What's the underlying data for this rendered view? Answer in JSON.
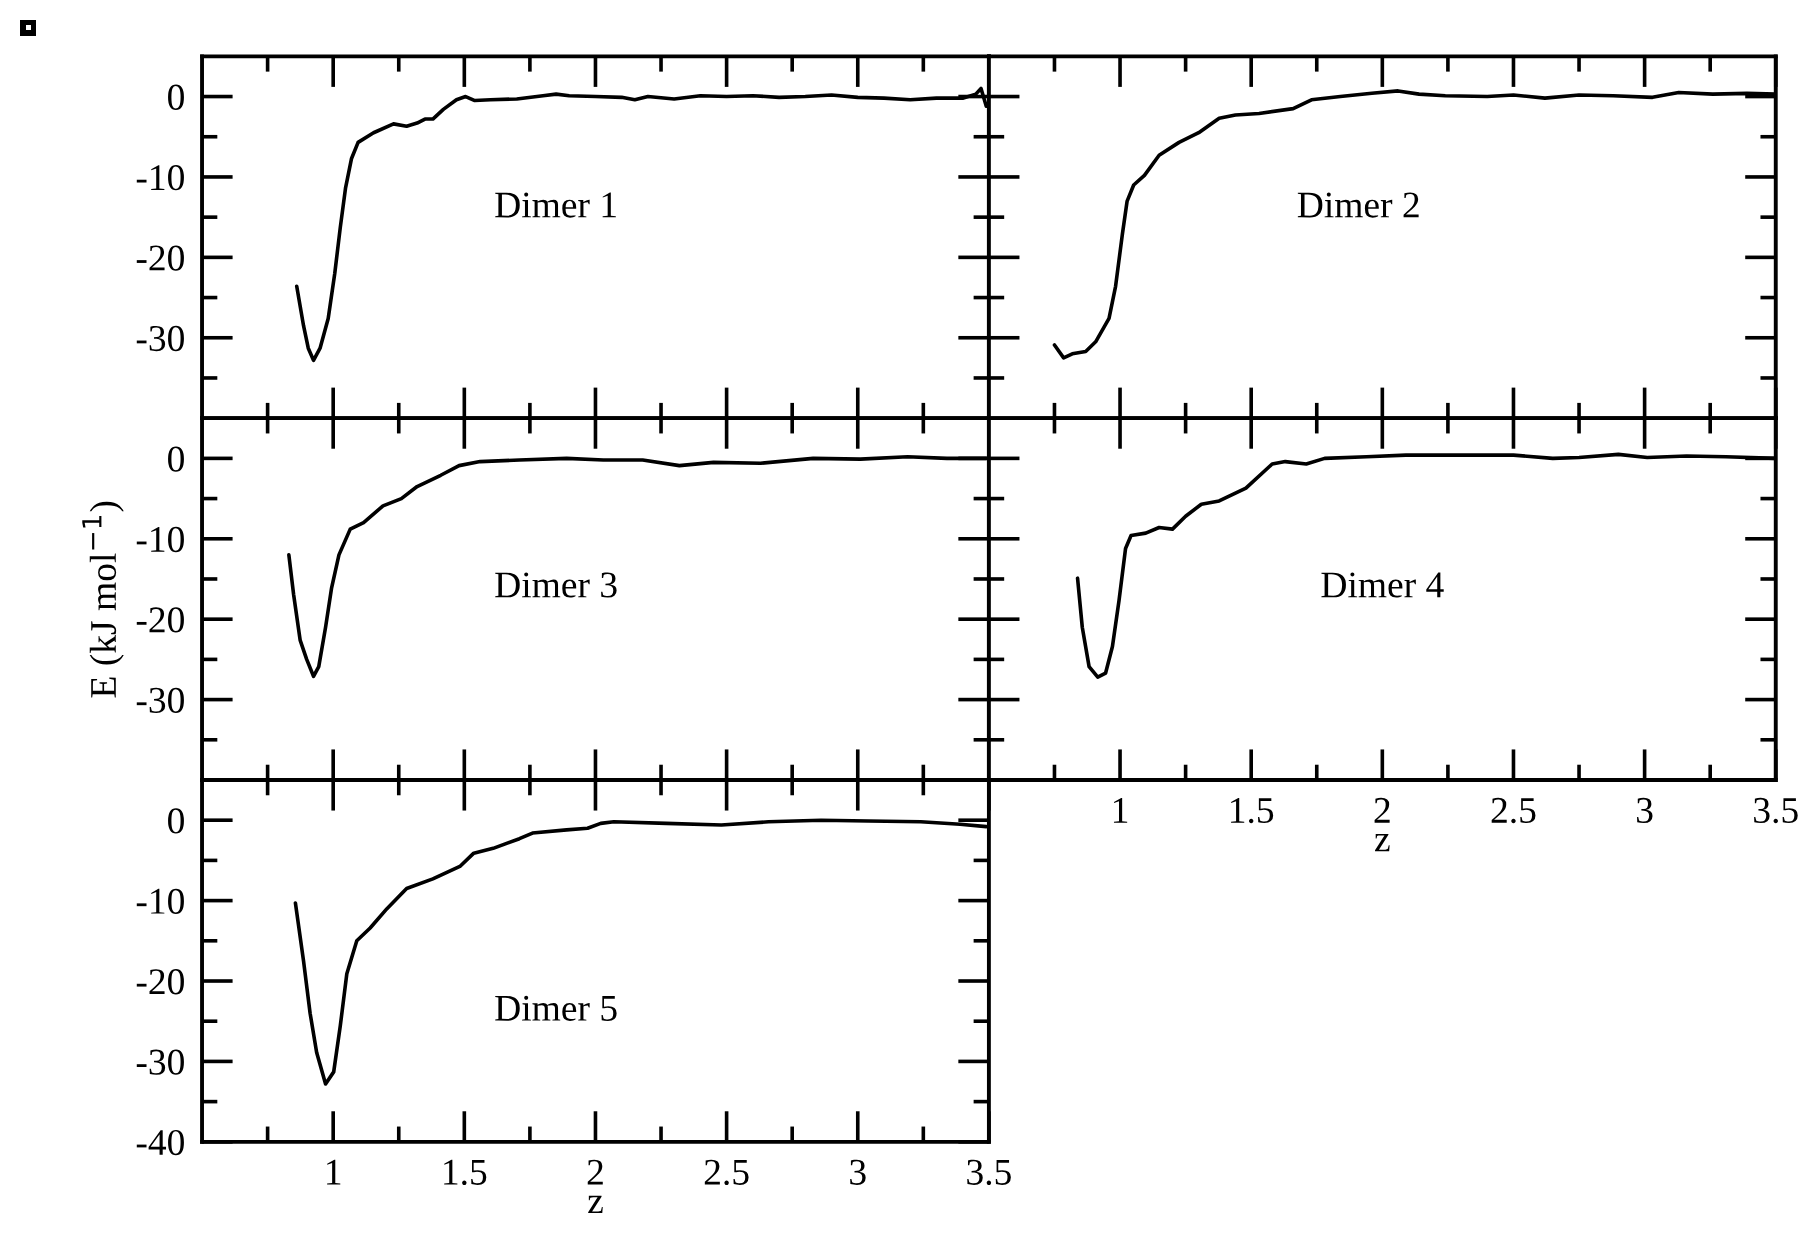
{
  "chart_data": [
    {
      "type": "line",
      "annotations": [
        "Dimer 1"
      ],
      "color": "#000000",
      "xlim": [
        0.5,
        3.5
      ],
      "ylim": [
        -40,
        5
      ],
      "xticks": [
        {
          "value": 0.75,
          "label": null
        },
        1,
        {
          "value": 1.25,
          "label": null
        },
        1.5,
        {
          "value": 1.75,
          "label": null
        },
        2,
        {
          "value": 2.25,
          "label": null
        },
        2.5,
        {
          "value": 2.75,
          "label": null
        },
        3,
        {
          "value": 3.25,
          "label": null
        },
        3.5
      ],
      "yticks": [
        {
          "value": -35,
          "label": null
        },
        -30,
        {
          "value": -25,
          "label": null
        },
        -20,
        {
          "value": -15,
          "label": null
        },
        -10,
        {
          "value": -5,
          "label": null
        },
        0
      ],
      "tick_labels": "y",
      "x": [
        0.861,
        0.887,
        0.905,
        0.925,
        0.95,
        0.981,
        1.006,
        1.027,
        1.047,
        1.07,
        1.095,
        1.154,
        1.23,
        1.28,
        1.32,
        1.35,
        1.38,
        1.42,
        1.47,
        1.505,
        1.54,
        1.6,
        1.7,
        1.8,
        1.85,
        1.9,
        2.0,
        2.1,
        2.15,
        2.2,
        2.3,
        2.4,
        2.5,
        2.6,
        2.7,
        2.8,
        2.9,
        3.0,
        3.1,
        3.2,
        3.3,
        3.4,
        3.45,
        3.47,
        3.49
      ],
      "values": [
        -23.6,
        -28.5,
        -31.3,
        -32.8,
        -31.3,
        -27.6,
        -22,
        -16.3,
        -11.4,
        -7.7,
        -5.7,
        -4.5,
        -3.4,
        -3.7,
        -3.3,
        -2.8,
        -2.8,
        -1.6,
        -0.4,
        0,
        -0.5,
        -0.4,
        -0.3,
        0.1,
        0.3,
        0.1,
        0,
        -0.1,
        -0.4,
        0,
        -0.3,
        0.1,
        0,
        0.1,
        -0.1,
        0,
        0.2,
        -0.1,
        -0.2,
        -0.4,
        -0.2,
        -0.2,
        0.3,
        1.0,
        -1.2
      ]
    },
    {
      "type": "line",
      "annotations": [
        "Dimer 2"
      ],
      "color": "#000000",
      "xlim": [
        0.5,
        3.5
      ],
      "ylim": [
        -40,
        5
      ],
      "xticks": [
        {
          "value": 0.75,
          "label": null
        },
        1,
        {
          "value": 1.25,
          "label": null
        },
        1.5,
        {
          "value": 1.75,
          "label": null
        },
        2,
        {
          "value": 2.25,
          "label": null
        },
        2.5,
        {
          "value": 2.75,
          "label": null
        },
        3,
        {
          "value": 3.25,
          "label": null
        },
        3.5
      ],
      "yticks": [
        {
          "value": -35,
          "label": null
        },
        -30,
        {
          "value": -25,
          "label": null
        },
        -20,
        {
          "value": -15,
          "label": null
        },
        -10,
        {
          "value": -5,
          "label": null
        },
        0
      ],
      "tick_labels": false,
      "x": [
        0.75,
        0.785,
        0.818,
        0.869,
        0.907,
        0.958,
        0.983,
        1.009,
        1.027,
        1.052,
        1.093,
        1.149,
        1.225,
        1.3,
        1.378,
        1.44,
        1.53,
        1.66,
        1.73,
        1.84,
        1.96,
        2.06,
        2.14,
        2.24,
        2.4,
        2.5,
        2.62,
        2.75,
        2.88,
        3.03,
        3.13,
        3.26,
        3.39,
        3.5
      ],
      "values": [
        -30.9,
        -32.5,
        -32.0,
        -31.7,
        -30.5,
        -27.6,
        -23.6,
        -17.1,
        -13.0,
        -11.0,
        -9.8,
        -7.3,
        -5.7,
        -4.5,
        -2.7,
        -2.3,
        -2.1,
        -1.5,
        -0.4,
        0,
        0.4,
        0.7,
        0.3,
        0.1,
        0,
        0.2,
        -0.2,
        0.2,
        0.1,
        -0.1,
        0.5,
        0.3,
        0.4,
        0.3
      ]
    },
    {
      "type": "line",
      "annotations": [
        "Dimer 3"
      ],
      "ylabel": "E (kJ mol$^{−1}$)",
      "color": "#000000",
      "xlim": [
        0.5,
        3.5
      ],
      "ylim": [
        -40,
        5
      ],
      "xticks": [
        {
          "value": 0.75,
          "label": null
        },
        1,
        {
          "value": 1.25,
          "label": null
        },
        1.5,
        {
          "value": 1.75,
          "label": null
        },
        2,
        {
          "value": 2.25,
          "label": null
        },
        2.5,
        {
          "value": 2.75,
          "label": null
        },
        3,
        {
          "value": 3.25,
          "label": null
        },
        3.5
      ],
      "yticks": [
        {
          "value": -35,
          "label": null
        },
        -30,
        {
          "value": -25,
          "label": null
        },
        -20,
        {
          "value": -15,
          "label": null
        },
        -10,
        {
          "value": -5,
          "label": null
        },
        0
      ],
      "tick_labels": "y",
      "x": [
        0.831,
        0.849,
        0.874,
        0.899,
        0.925,
        0.945,
        0.971,
        0.994,
        1.022,
        1.065,
        1.116,
        1.19,
        1.26,
        1.32,
        1.41,
        1.48,
        1.56,
        1.71,
        1.89,
        2.03,
        2.18,
        2.32,
        2.45,
        2.63,
        2.83,
        3.01,
        3.19,
        3.34,
        3.49
      ],
      "values": [
        -12.0,
        -16.9,
        -22.6,
        -25.0,
        -27.1,
        -25.9,
        -21.0,
        -16.1,
        -12.0,
        -8.8,
        -8.0,
        -5.9,
        -5.0,
        -3.5,
        -2.1,
        -0.9,
        -0.4,
        -0.2,
        0,
        -0.2,
        -0.2,
        -0.9,
        -0.5,
        -0.6,
        0,
        -0.1,
        0.2,
        0,
        0
      ]
    },
    {
      "type": "line",
      "annotations": [
        "Dimer 4"
      ],
      "xlabel": "z",
      "color": "#000000",
      "xlim": [
        0.5,
        3.5
      ],
      "ylim": [
        -40,
        5
      ],
      "xticks": [
        {
          "value": 0.75,
          "label": null
        },
        1,
        {
          "value": 1.25,
          "label": null
        },
        1.5,
        {
          "value": 1.75,
          "label": null
        },
        2,
        {
          "value": 2.25,
          "label": null
        },
        2.5,
        {
          "value": 2.75,
          "label": null
        },
        3,
        {
          "value": 3.25,
          "label": null
        },
        3.5
      ],
      "yticks": [
        {
          "value": -35,
          "label": null
        },
        -30,
        {
          "value": -25,
          "label": null
        },
        -20,
        {
          "value": -15,
          "label": null
        },
        -10,
        {
          "value": -5,
          "label": null
        },
        0
      ],
      "tick_labels": "x",
      "x": [
        0.838,
        0.856,
        0.882,
        0.915,
        0.945,
        0.971,
        0.996,
        1.021,
        1.042,
        1.098,
        1.149,
        1.2,
        1.25,
        1.31,
        1.378,
        1.48,
        1.58,
        1.63,
        1.71,
        1.78,
        1.94,
        2.09,
        2.29,
        2.5,
        2.65,
        2.75,
        2.9,
        3.01,
        3.16,
        3.31,
        3.5
      ],
      "values": [
        -14.9,
        -21.0,
        -25.9,
        -27.2,
        -26.7,
        -23.4,
        -17.7,
        -11.2,
        -9.6,
        -9.3,
        -8.6,
        -8.8,
        -7.2,
        -5.7,
        -5.3,
        -3.7,
        -0.7,
        -0.4,
        -0.7,
        0,
        0.2,
        0.4,
        0.4,
        0.4,
        0,
        0.1,
        0.5,
        0.1,
        0.3,
        0.2,
        0
      ]
    },
    {
      "type": "line",
      "annotations": [
        "Dimer 5"
      ],
      "xlabel": "z",
      "color": "#000000",
      "xlim": [
        0.5,
        3.5
      ],
      "ylim": [
        -40,
        5
      ],
      "xticks": [
        {
          "value": 0.75,
          "label": null
        },
        1,
        {
          "value": 1.25,
          "label": null
        },
        1.5,
        {
          "value": 1.75,
          "label": null
        },
        2,
        {
          "value": 2.25,
          "label": null
        },
        2.5,
        {
          "value": 2.75,
          "label": null
        },
        3,
        {
          "value": 3.25,
          "label": null
        },
        3.5
      ],
      "yticks": [
        -40,
        {
          "value": -35,
          "label": null
        },
        -30,
        {
          "value": -25,
          "label": null
        },
        -20,
        {
          "value": -15,
          "label": null
        },
        -10,
        {
          "value": -5,
          "label": null
        },
        0
      ],
      "x": [
        0.856,
        0.887,
        0.912,
        0.937,
        0.971,
        1.002,
        1.027,
        1.052,
        1.09,
        1.141,
        1.205,
        1.28,
        1.38,
        1.485,
        1.536,
        1.61,
        1.71,
        1.76,
        1.89,
        1.97,
        2.02,
        2.07,
        2.27,
        2.48,
        2.66,
        2.86,
        3.04,
        3.24,
        3.39,
        3.49
      ],
      "values": [
        -10.3,
        -17.5,
        -24.0,
        -28.9,
        -32.8,
        -31.3,
        -25.6,
        -19.1,
        -15.0,
        -13.4,
        -11.0,
        -8.5,
        -7.3,
        -5.7,
        -4.1,
        -3.5,
        -2.3,
        -1.6,
        -1.2,
        -1.0,
        -0.4,
        -0.2,
        -0.4,
        -0.6,
        -0.2,
        0,
        -0.1,
        -0.2,
        -0.5,
        -0.8
      ]
    }
  ]
}
